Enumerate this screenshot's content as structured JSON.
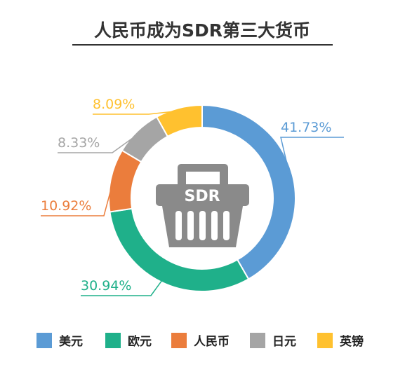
{
  "chart_data": {
    "type": "pie",
    "title": "人民币成为SDR第三大货币",
    "center_label": "SDR",
    "categories": [
      "美元",
      "欧元",
      "人民币",
      "日元",
      "英镑"
    ],
    "values": [
      41.73,
      30.94,
      10.92,
      8.33,
      8.09
    ],
    "value_labels": [
      "41.73%",
      "30.94%",
      "10.92%",
      "8.33%",
      "8.09%"
    ],
    "colors": [
      "#5b9bd5",
      "#1fb08a",
      "#eb7d3c",
      "#a5a5a5",
      "#ffc12f"
    ],
    "legend_placement": "bottom"
  },
  "center_icon": "basket-icon"
}
